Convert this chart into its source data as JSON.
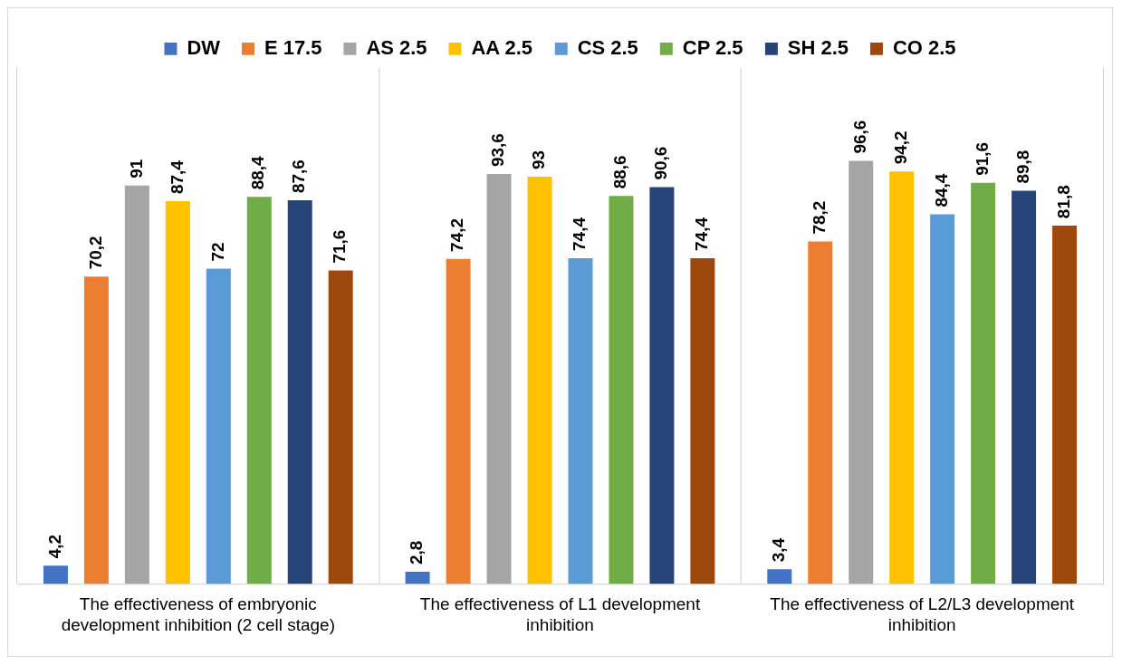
{
  "chart_data": {
    "type": "bar",
    "categories": [
      "The effectiveness of embryonic development inhibition (2 cell stage)",
      "The effectiveness of L1 development inhibition",
      "The effectiveness of L2/L3 development inhibition"
    ],
    "series": [
      {
        "name": "DW",
        "color": "#4472c4",
        "values": [
          4.2,
          2.8,
          3.4
        ],
        "value_labels": [
          "4,2",
          "2,8",
          "3,4"
        ]
      },
      {
        "name": "E 17.5",
        "color": "#ed7d31",
        "values": [
          70.2,
          74.2,
          78.2
        ],
        "value_labels": [
          "70,2",
          "74,2",
          "78,2"
        ]
      },
      {
        "name": "AS 2.5",
        "color": "#a5a5a5",
        "values": [
          91,
          93.6,
          96.6
        ],
        "value_labels": [
          "91",
          "93,6",
          "96,6"
        ]
      },
      {
        "name": "AA 2.5",
        "color": "#ffc000",
        "values": [
          87.4,
          93,
          94.2
        ],
        "value_labels": [
          "87,4",
          "93",
          "94,2"
        ]
      },
      {
        "name": "CS 2.5",
        "color": "#5b9bd5",
        "values": [
          72,
          74.4,
          84.4
        ],
        "value_labels": [
          "72",
          "74,4",
          "84,4"
        ]
      },
      {
        "name": "CP 2.5",
        "color": "#70ad47",
        "values": [
          88.4,
          88.6,
          91.6
        ],
        "value_labels": [
          "88,4",
          "88,6",
          "91,6"
        ]
      },
      {
        "name": "SH 2.5",
        "color": "#264478",
        "values": [
          87.6,
          90.6,
          89.8
        ],
        "value_labels": [
          "87,6",
          "90,6",
          "89,8"
        ]
      },
      {
        "name": "CO 2.5",
        "color": "#9e480e",
        "values": [
          71.6,
          74.4,
          81.8
        ],
        "value_labels": [
          "71,6",
          "74,4",
          "81,8"
        ]
      }
    ],
    "legend": "top",
    "grid": "x"
  }
}
